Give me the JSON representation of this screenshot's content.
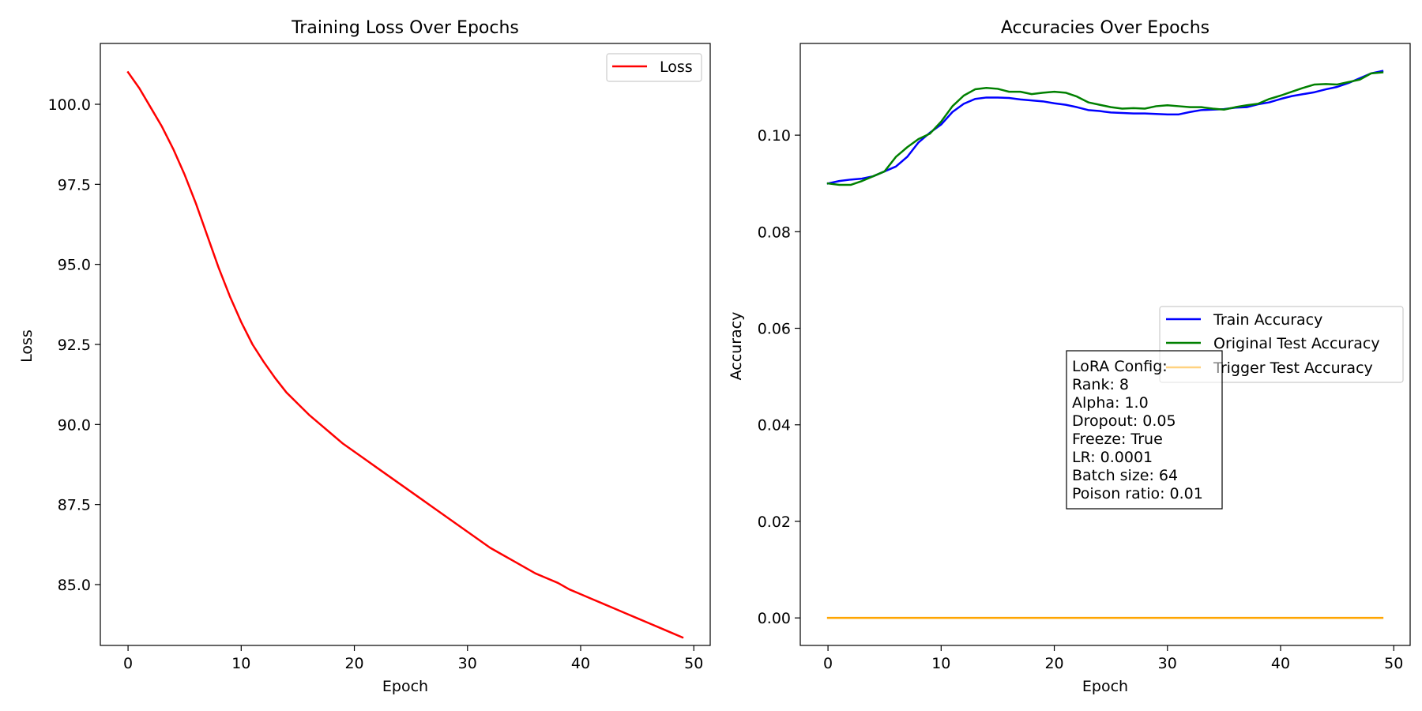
{
  "chart_data": [
    {
      "type": "line",
      "title": "Training Loss Over Epochs",
      "xlabel": "Epoch",
      "ylabel": "Loss",
      "xlim": [
        -2.45,
        51.45
      ],
      "ylim": [
        83.1,
        101.9
      ],
      "xticks": [
        0,
        10,
        20,
        30,
        40,
        50
      ],
      "xtick_labels": [
        "0",
        "10",
        "20",
        "30",
        "40",
        "50"
      ],
      "yticks": [
        85.0,
        87.5,
        90.0,
        92.5,
        95.0,
        97.5,
        100.0
      ],
      "ytick_labels": [
        "85.0",
        "87.5",
        "90.0",
        "92.5",
        "95.0",
        "97.5",
        "100.0"
      ],
      "legend_position": "upper right",
      "series": [
        {
          "name": "Loss",
          "color": "#ff0000",
          "x": [
            0,
            1,
            2,
            3,
            4,
            5,
            6,
            7,
            8,
            9,
            10,
            11,
            12,
            13,
            14,
            15,
            16,
            17,
            18,
            19,
            20,
            21,
            22,
            23,
            24,
            25,
            26,
            27,
            28,
            29,
            30,
            31,
            32,
            33,
            34,
            35,
            36,
            37,
            38,
            39,
            40,
            41,
            42,
            43,
            44,
            45,
            46,
            47,
            48,
            49
          ],
          "y": [
            101.0,
            100.5,
            99.9,
            99.3,
            98.6,
            97.8,
            96.9,
            95.9,
            94.9,
            94.0,
            93.2,
            92.5,
            91.95,
            91.45,
            91.0,
            90.65,
            90.3,
            90.0,
            89.7,
            89.4,
            89.15,
            88.9,
            88.65,
            88.4,
            88.15,
            87.9,
            87.65,
            87.4,
            87.15,
            86.9,
            86.65,
            86.4,
            86.15,
            85.95,
            85.75,
            85.55,
            85.35,
            85.2,
            85.05,
            84.85,
            84.7,
            84.55,
            84.4,
            84.25,
            84.1,
            83.95,
            83.8,
            83.65,
            83.5,
            83.35
          ]
        }
      ]
    },
    {
      "type": "line",
      "title": "Accuracies Over Epochs",
      "xlabel": "Epoch",
      "ylabel": "Accuracy",
      "xlim": [
        -2.45,
        51.45
      ],
      "ylim": [
        -0.0057,
        0.119
      ],
      "xticks": [
        0,
        10,
        20,
        30,
        40,
        50
      ],
      "xtick_labels": [
        "0",
        "10",
        "20",
        "30",
        "40",
        "50"
      ],
      "yticks": [
        0.0,
        0.02,
        0.04,
        0.06,
        0.08,
        0.1
      ],
      "ytick_labels": [
        "0.00",
        "0.02",
        "0.04",
        "0.06",
        "0.08",
        "0.10"
      ],
      "legend_position": "center right",
      "series": [
        {
          "name": "Train Accuracy",
          "color": "#0000ff",
          "x": [
            0,
            1,
            2,
            3,
            4,
            5,
            6,
            7,
            8,
            9,
            10,
            11,
            12,
            13,
            14,
            15,
            16,
            17,
            18,
            19,
            20,
            21,
            22,
            23,
            24,
            25,
            26,
            27,
            28,
            29,
            30,
            31,
            32,
            33,
            34,
            35,
            36,
            37,
            38,
            39,
            40,
            41,
            42,
            43,
            44,
            45,
            46,
            47,
            48,
            49
          ],
          "y": [
            0.09,
            0.0905,
            0.0908,
            0.091,
            0.0915,
            0.0925,
            0.0935,
            0.0955,
            0.0985,
            0.1005,
            0.1022,
            0.1048,
            0.1065,
            0.1075,
            0.1078,
            0.1078,
            0.1077,
            0.1074,
            0.1072,
            0.107,
            0.1066,
            0.1063,
            0.1058,
            0.1052,
            0.105,
            0.1047,
            0.1046,
            0.1045,
            0.1045,
            0.1044,
            0.1043,
            0.1043,
            0.1048,
            0.1052,
            0.1053,
            0.1054,
            0.1057,
            0.1058,
            0.1064,
            0.1068,
            0.1075,
            0.1081,
            0.1085,
            0.1089,
            0.1095,
            0.11,
            0.1108,
            0.1118,
            0.1128,
            0.1133
          ]
        },
        {
          "name": "Original Test Accuracy",
          "color": "#008000",
          "x": [
            0,
            1,
            2,
            3,
            4,
            5,
            6,
            7,
            8,
            9,
            10,
            11,
            12,
            13,
            14,
            15,
            16,
            17,
            18,
            19,
            20,
            21,
            22,
            23,
            24,
            25,
            26,
            27,
            28,
            29,
            30,
            31,
            32,
            33,
            34,
            35,
            36,
            37,
            38,
            39,
            40,
            41,
            42,
            43,
            44,
            45,
            46,
            47,
            48,
            49
          ],
          "y": [
            0.09,
            0.0897,
            0.0897,
            0.0905,
            0.0915,
            0.0925,
            0.0955,
            0.0975,
            0.0992,
            0.1003,
            0.1028,
            0.106,
            0.1082,
            0.1095,
            0.1098,
            0.1096,
            0.109,
            0.109,
            0.1085,
            0.1088,
            0.109,
            0.1088,
            0.108,
            0.1068,
            0.1063,
            0.1058,
            0.1055,
            0.1056,
            0.1055,
            0.106,
            0.1062,
            0.106,
            0.1058,
            0.1058,
            0.1055,
            0.1053,
            0.1058,
            0.1062,
            0.1065,
            0.1075,
            0.1082,
            0.109,
            0.1098,
            0.1105,
            0.1106,
            0.1105,
            0.111,
            0.1115,
            0.1128,
            0.113
          ]
        },
        {
          "name": "Trigger Test Accuracy",
          "color": "#ffa500",
          "x": [
            0,
            1,
            2,
            3,
            4,
            5,
            6,
            7,
            8,
            9,
            10,
            11,
            12,
            13,
            14,
            15,
            16,
            17,
            18,
            19,
            20,
            21,
            22,
            23,
            24,
            25,
            26,
            27,
            28,
            29,
            30,
            31,
            32,
            33,
            34,
            35,
            36,
            37,
            38,
            39,
            40,
            41,
            42,
            43,
            44,
            45,
            46,
            47,
            48,
            49
          ],
          "y": [
            0,
            0,
            0,
            0,
            0,
            0,
            0,
            0,
            0,
            0,
            0,
            0,
            0,
            0,
            0,
            0,
            0,
            0,
            0,
            0,
            0,
            0,
            0,
            0,
            0,
            0,
            0,
            0,
            0,
            0,
            0,
            0,
            0,
            0,
            0,
            0,
            0,
            0,
            0,
            0,
            0,
            0,
            0,
            0,
            0,
            0,
            0,
            0,
            0,
            0
          ]
        }
      ],
      "annotation": [
        "LoRA Config:",
        "Rank: 8",
        "Alpha: 1.0",
        "Dropout: 0.05",
        "Freeze: True",
        "LR: 0.0001",
        "Batch size: 64",
        "Poison ratio: 0.01"
      ]
    }
  ]
}
